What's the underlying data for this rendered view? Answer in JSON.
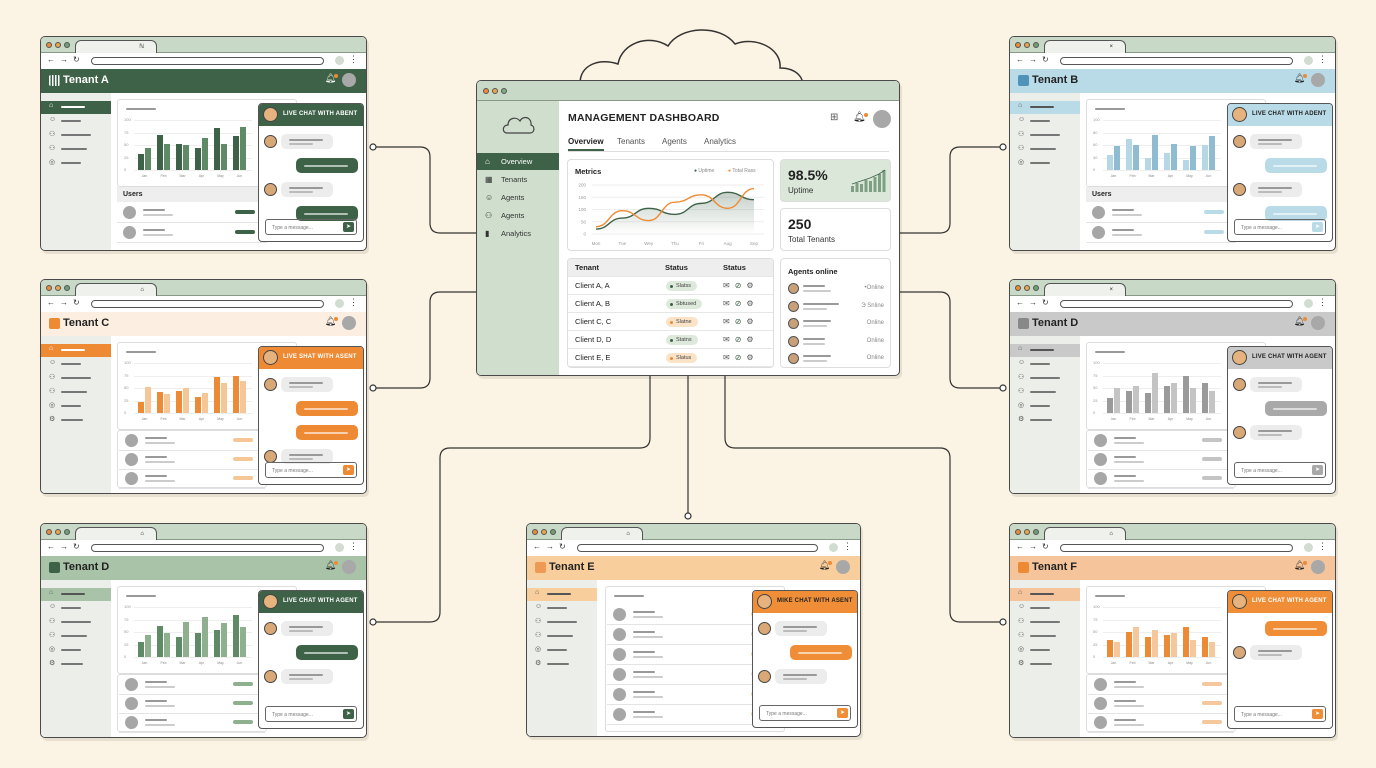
{
  "dashboard": {
    "title": "MANAGEMENT DASHBOARD",
    "nav": [
      {
        "label": "Overview",
        "icon": "home-icon",
        "active": true
      },
      {
        "label": "Tenants",
        "icon": "grid-icon"
      },
      {
        "label": "Agents",
        "icon": "user-icon"
      },
      {
        "label": "Agents",
        "icon": "users-icon"
      },
      {
        "label": "Analytics",
        "icon": "bar-chart-icon"
      }
    ],
    "tabs": [
      "Overview",
      "Tenants",
      "Agents",
      "Analytics"
    ],
    "active_tab": "Overview",
    "metrics": {
      "title": "Metrics",
      "legend": [
        "Uptime",
        "Total Rass"
      ]
    },
    "uptime": {
      "value": "98.5%",
      "label": "Uptime"
    },
    "total_tenants": {
      "value": "250",
      "label": "Total Tenants"
    },
    "table": {
      "headers": [
        "Tenant",
        "Status",
        "Status"
      ],
      "rows": [
        {
          "tenant": "Client A, A",
          "status": "Slatss",
          "tone": "green"
        },
        {
          "tenant": "Client A, B",
          "status": "Sbtused",
          "tone": "green"
        },
        {
          "tenant": "Client C, C",
          "status": "Slatne",
          "tone": "orange"
        },
        {
          "tenant": "Client D, D",
          "status": "Statns",
          "tone": "green"
        },
        {
          "tenant": "Client E, E",
          "status": "Slatus",
          "tone": "orange"
        }
      ]
    },
    "agents_online": {
      "title": "Agents online",
      "statuses": [
        "•Online",
        "Э Snline",
        "Online",
        "Online",
        "Online"
      ]
    },
    "colors": {
      "primary": "#3e6248",
      "accent": "#ee8a33",
      "sidebar": "#cfdecd"
    }
  },
  "chart_data": {
    "type": "line",
    "title": "Metrics",
    "x": [
      "Mon",
      "Tue",
      "Wey",
      "Thu",
      "Fri",
      "Aug",
      "Sep"
    ],
    "yticks": [
      0,
      50,
      100,
      150,
      200
    ],
    "ylim": [
      0,
      200
    ],
    "grid": true,
    "legend_position": "top-right",
    "series": [
      {
        "name": "Uptime",
        "color": "#3e6248",
        "values": [
          20,
          65,
          105,
          80,
          125,
          170,
          140
        ]
      },
      {
        "name": "Total Rass",
        "color": "#ee8a33",
        "values": [
          30,
          95,
          55,
          130,
          160,
          105,
          185
        ]
      }
    ]
  },
  "tenants": [
    {
      "name": "Tenant A",
      "theme": "a",
      "layout": "users",
      "chat_title": "LIVE CHAT WITH ABENT",
      "users_title": "Users",
      "placeholder": "Type a message...",
      "months": [
        "Jan",
        "Feb",
        "Mar",
        "Apr",
        "May",
        "Jun"
      ],
      "yticks": [
        "100",
        "75",
        "50",
        "25",
        "0"
      ],
      "bars": [
        [
          33,
          44
        ],
        [
          70,
          52
        ],
        [
          52,
          50
        ],
        [
          45,
          65
        ],
        [
          85,
          52
        ],
        [
          68,
          86
        ]
      ],
      "msgs": [
        "in",
        "out",
        "in",
        "out"
      ],
      "tab_glyph": "ℕ"
    },
    {
      "name": "Tenant C",
      "theme": "c",
      "layout": "list",
      "chat_title": "LIVE SHAT WITH ASENT",
      "placeholder": "Type a message...",
      "months": [
        "Jan",
        "Feb",
        "Mar",
        "Apr",
        "May",
        "Jun"
      ],
      "yticks": [
        "100",
        "75",
        "50",
        "25",
        "0"
      ],
      "bars": [
        [
          23,
          53
        ],
        [
          42,
          38
        ],
        [
          45,
          50
        ],
        [
          33,
          40
        ],
        [
          72,
          60
        ],
        [
          75,
          65
        ]
      ],
      "msgs": [
        "in",
        "out",
        "out",
        "in"
      ],
      "tab_glyph": "⌂"
    },
    {
      "name": "Tenant D",
      "theme": "d",
      "layout": "list",
      "chat_title": "LIVE CHAT WITH AGENT",
      "placeholder": "Type a message...",
      "months": [
        "Jan",
        "Feb",
        "Mar",
        "Apr",
        "May",
        "Jun"
      ],
      "yticks": [
        "100",
        "75",
        "50",
        "25",
        "0"
      ],
      "bars": [
        [
          30,
          45
        ],
        [
          62,
          48
        ],
        [
          40,
          70
        ],
        [
          48,
          80
        ],
        [
          55,
          68
        ],
        [
          85,
          60
        ]
      ],
      "msgs": [
        "in",
        "out",
        "in"
      ],
      "tab_glyph": "⌂"
    },
    {
      "name": "Tenant E",
      "theme": "e",
      "layout": "rows",
      "chat_title": "MIKE CHAT WITH ASENT",
      "placeholder": "Type a message...",
      "msgs": [
        "in",
        "out",
        "in"
      ],
      "tab_glyph": "⌂"
    },
    {
      "name": "Tenant B",
      "theme": "b",
      "layout": "users",
      "chat_title": "LIVE CHAT WITH ADENT",
      "users_title": "Users",
      "placeholder": "Type a message...",
      "months": [
        "Jan",
        "Feb",
        "Mar",
        "Apr",
        "May",
        "Jun"
      ],
      "yticks": [
        "100",
        "80",
        "60",
        "40",
        "0"
      ],
      "bars": [
        [
          30,
          48
        ],
        [
          62,
          50
        ],
        [
          24,
          70
        ],
        [
          34,
          52
        ],
        [
          20,
          48
        ],
        [
          50,
          68
        ]
      ],
      "msgs": [
        "in",
        "out",
        "in",
        "out"
      ],
      "tab_glyph": "×"
    },
    {
      "name": "Tenant D",
      "theme": "g",
      "layout": "list",
      "chat_title": "LIVE CHAT WITH AGENT",
      "placeholder": "Type a message...",
      "months": [
        "Jan",
        "Feb",
        "Mar",
        "Apr",
        "May",
        "Jun"
      ],
      "yticks": [
        "100",
        "75",
        "50",
        "25",
        "0"
      ],
      "bars": [
        [
          30,
          50
        ],
        [
          45,
          55
        ],
        [
          40,
          80
        ],
        [
          55,
          60
        ],
        [
          75,
          50
        ],
        [
          60,
          45
        ]
      ],
      "msgs": [
        "in",
        "out",
        "in"
      ],
      "tab_glyph": "×"
    },
    {
      "name": "Tenant F",
      "theme": "f",
      "layout": "list",
      "chat_title": "LIVE CHAT WITH AGENT",
      "placeholder": "Type a message...",
      "months": [
        "Jan",
        "Feb",
        "Mar",
        "Apr",
        "May",
        "Jun"
      ],
      "yticks": [
        "100",
        "75",
        "50",
        "25",
        "0"
      ],
      "bars": [
        [
          35,
          30
        ],
        [
          50,
          60
        ],
        [
          40,
          55
        ],
        [
          45,
          48
        ],
        [
          60,
          35
        ],
        [
          40,
          30
        ]
      ],
      "msgs": [
        "out",
        "in"
      ],
      "tab_glyph": "⌂"
    }
  ],
  "themes": {
    "a": {
      "hdr": "#3e6248",
      "hdr_text": "#ffffff",
      "nav": "#3e6248",
      "bar1": "#3e6248",
      "bar2": "#5e8b66",
      "chat": "#3e6248",
      "chat_text": "#ffffff",
      "out": "#3e6248",
      "logo": "#ffffff"
    },
    "b": {
      "hdr": "#b9dbe8",
      "hdr_text": "#222222",
      "nav": "#b9dbe8",
      "bar1": "#b6d8e6",
      "bar2": "#8fbcd0",
      "chat": "#b9dbe8",
      "chat_text": "#222222",
      "out": "#b9dbe8",
      "logo": "#4f93b8"
    },
    "c": {
      "hdr": "#fcefe2",
      "hdr_text": "#222222",
      "nav": "#ee8a33",
      "bar1": "#ec8a35",
      "bar2": "#f6c796",
      "chat": "#ee8a33",
      "chat_text": "#ffffff",
      "out": "#ee8a33",
      "logo": "#ee8a33"
    },
    "d": {
      "hdr": "#a9c3a8",
      "hdr_text": "#222222",
      "nav": "#a9c3a8",
      "bar1": "#5e8a66",
      "bar2": "#8fb08f",
      "chat": "#3e6248",
      "chat_text": "#ffffff",
      "out": "#3e6248",
      "logo": "#3e6248"
    },
    "e": {
      "hdr": "#f8cf9c",
      "hdr_text": "#222222",
      "nav": "#f8cf9c",
      "bar1": "#ee8a33",
      "bar2": "#f6c796",
      "chat": "#ef8e36",
      "chat_text": "#222222",
      "out": "#ef8e36",
      "logo": "#ee9a55"
    },
    "f": {
      "hdr": "#f5c49b",
      "hdr_text": "#222222",
      "nav": "#f5c49b",
      "bar1": "#ec8a35",
      "bar2": "#f4c79c",
      "chat": "#ef8e36",
      "chat_text": "#ffffff",
      "out": "#ef8e36",
      "logo": "#ee8a33"
    },
    "g": {
      "hdr": "#c9c9c9",
      "hdr_text": "#222222",
      "nav": "#c9c9c9",
      "bar1": "#9a9a9a",
      "bar2": "#c4c4c4",
      "chat": "#c9c9c9",
      "chat_text": "#222222",
      "out": "#a9a9a9",
      "logo": "#888888"
    }
  }
}
